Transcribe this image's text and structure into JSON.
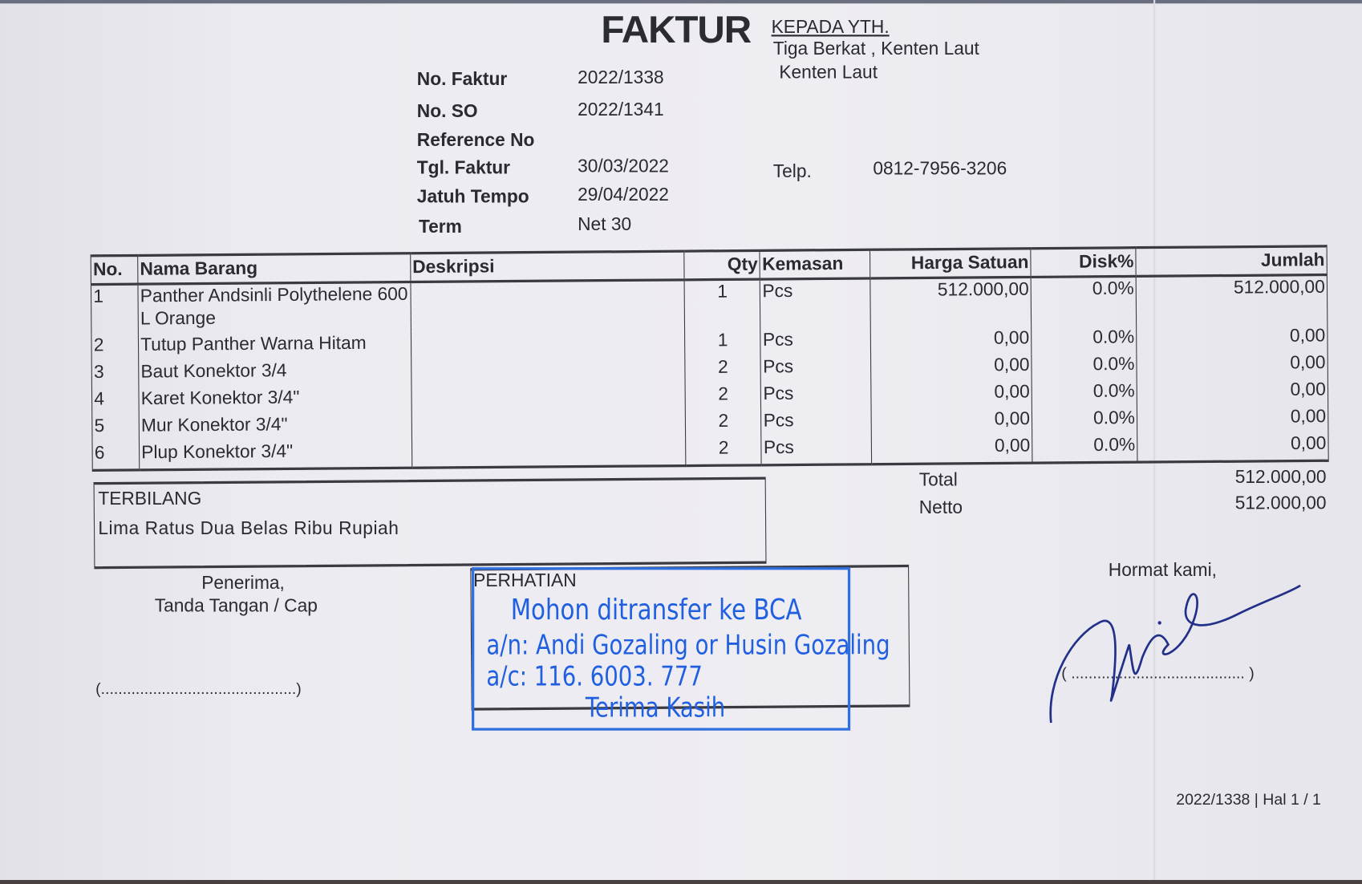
{
  "header": {
    "title": "FAKTUR",
    "recipient_label": "KEPADA YTH.",
    "recipient_name": "Tiga Berkat , Kenten Laut",
    "recipient_address": "Kenten Laut",
    "phone_label": "Telp.",
    "phone": "0812-7956-3206"
  },
  "meta": [
    {
      "label": "No. Faktur",
      "value": "2022/1338"
    },
    {
      "label": "No. SO",
      "value": "2022/1341"
    },
    {
      "label": "Reference No",
      "value": ""
    },
    {
      "label": "Tgl. Faktur",
      "value": "30/03/2022"
    },
    {
      "label": "Jatuh Tempo",
      "value": "29/04/2022"
    },
    {
      "label": "Term",
      "value": "Net 30"
    }
  ],
  "table": {
    "columns": [
      "No.",
      "Nama Barang",
      "Deskripsi",
      "Qty",
      "Kemasan",
      "Harga Satuan",
      "Disk%",
      "Jumlah"
    ],
    "rows": [
      {
        "no": "1",
        "name": "Panther Andsinli Polythelene 600 L Orange",
        "desc": "",
        "qty": "1",
        "unit": "Pcs",
        "price": "512.000,00",
        "disc": "0.0%",
        "total": "512.000,00"
      },
      {
        "no": "2",
        "name": "Tutup Panther Warna Hitam",
        "desc": "",
        "qty": "1",
        "unit": "Pcs",
        "price": "0,00",
        "disc": "0.0%",
        "total": "0,00"
      },
      {
        "no": "3",
        "name": "Baut Konektor 3/4",
        "desc": "",
        "qty": "2",
        "unit": "Pcs",
        "price": "0,00",
        "disc": "0.0%",
        "total": "0,00"
      },
      {
        "no": "4",
        "name": "Karet Konektor 3/4\"",
        "desc": "",
        "qty": "2",
        "unit": "Pcs",
        "price": "0,00",
        "disc": "0.0%",
        "total": "0,00"
      },
      {
        "no": "5",
        "name": "Mur Konektor 3/4\"",
        "desc": "",
        "qty": "2",
        "unit": "Pcs",
        "price": "0,00",
        "disc": "0.0%",
        "total": "0,00"
      },
      {
        "no": "6",
        "name": "Plup Konektor 3/4\"",
        "desc": "",
        "qty": "2",
        "unit": "Pcs",
        "price": "0,00",
        "disc": "0.0%",
        "total": "0,00"
      }
    ]
  },
  "totals": {
    "total_label": "Total",
    "total": "512.000,00",
    "netto_label": "Netto",
    "netto": "512.000,00"
  },
  "terbilang": {
    "label": "TERBILANG",
    "text": "Lima Ratus Dua Belas Ribu Rupiah"
  },
  "receiver": {
    "line1": "Penerima,",
    "line2": "Tanda Tangan / Cap",
    "blank": "(.............................................)"
  },
  "notice": {
    "label": "PERHATIAN"
  },
  "stamp": {
    "line1": "Mohon ditransfer ke BCA",
    "line2": "a/n: Andi Gozaling or Husin Gozaling",
    "line3": "a/c: 116. 6003. 777",
    "line4": "Terima Kasih",
    "color": "#1f5fe0"
  },
  "sender": {
    "label": "Hormat kami,",
    "blank": "( ........................................ )"
  },
  "footer": {
    "page": "2022/1338 | Hal 1 / 1"
  }
}
